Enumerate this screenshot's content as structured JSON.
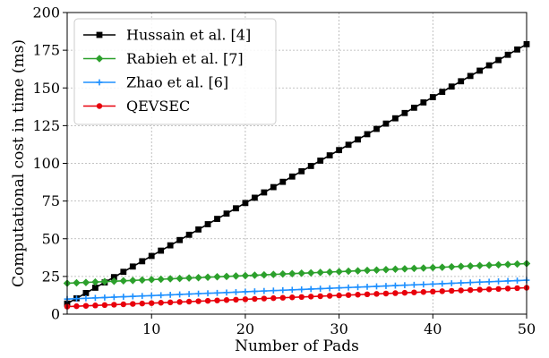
{
  "chart_data": {
    "type": "line",
    "title": "",
    "xlabel": "Number of Pads",
    "ylabel": "Computational cost in time (ms)",
    "xlim": [
      1,
      50
    ],
    "ylim": [
      0,
      200
    ],
    "xticks": [
      10,
      20,
      30,
      40,
      50
    ],
    "yticks": [
      0,
      25,
      50,
      75,
      100,
      125,
      150,
      175,
      200
    ],
    "grid": true,
    "legend_position": "top-left",
    "series": [
      {
        "name": "Hussain et al. [4]",
        "color": "#000000",
        "marker": "square",
        "x_start": 1,
        "x_end": 50,
        "y_start": 7.0,
        "y_end": 179.0
      },
      {
        "name": "Rabieh et al. [7]",
        "color": "#2ca02c",
        "marker": "diamond",
        "x_start": 1,
        "x_end": 50,
        "y_start": 20.5,
        "y_end": 33.5
      },
      {
        "name": "Zhao et al. [6]",
        "color": "#1e90ff",
        "marker": "plus",
        "x_start": 1,
        "x_end": 50,
        "y_start": 10.0,
        "y_end": 22.5
      },
      {
        "name": "QEVSEC",
        "color": "#e8000b",
        "marker": "circle",
        "x_start": 1,
        "x_end": 50,
        "y_start": 5.0,
        "y_end": 17.5
      }
    ]
  }
}
